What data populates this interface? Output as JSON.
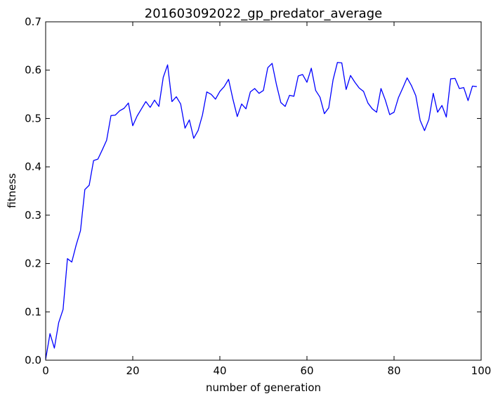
{
  "chart_data": {
    "type": "line",
    "title": "201603092022_gp_predator_average",
    "xlabel": "number of generation",
    "ylabel": "fitness",
    "xlim": [
      0,
      100
    ],
    "ylim": [
      0,
      0.7
    ],
    "xticks": [
      0,
      20,
      40,
      60,
      80,
      100
    ],
    "xtick_labels": [
      "0",
      "20",
      "40",
      "60",
      "80",
      "100"
    ],
    "yticks": [
      0,
      0.1,
      0.2,
      0.3,
      0.4,
      0.5,
      0.6,
      0.7
    ],
    "ytick_labels": [
      "0.0",
      "0.1",
      "0.2",
      "0.3",
      "0.4",
      "0.5",
      "0.6",
      "0.7"
    ],
    "grid": false,
    "line_color": "#0000ff",
    "series": [
      {
        "x": [
          0,
          1,
          2,
          3,
          4,
          5,
          6,
          7,
          8,
          9,
          10,
          11,
          12,
          13,
          14,
          15,
          16,
          17,
          18,
          19,
          20,
          21,
          22,
          23,
          24,
          25,
          26,
          27,
          28,
          29,
          30,
          31,
          32,
          33,
          34,
          35,
          36,
          37,
          38,
          39,
          40,
          41,
          42,
          43,
          44,
          45,
          46,
          47,
          48,
          49,
          50,
          51,
          52,
          53,
          54,
          55,
          56,
          57,
          58,
          59,
          60,
          61,
          62,
          63,
          64,
          65,
          66,
          67,
          68,
          69,
          70,
          71,
          72,
          73,
          74,
          75,
          76,
          77,
          78,
          79,
          80,
          81,
          82,
          83,
          84,
          85,
          86,
          87,
          88,
          89,
          90,
          91,
          92,
          93,
          94,
          95,
          96,
          97,
          98,
          99
        ],
        "values": [
          0.002,
          0.055,
          0.025,
          0.078,
          0.105,
          0.21,
          0.203,
          0.238,
          0.268,
          0.353,
          0.362,
          0.413,
          0.416,
          0.435,
          0.455,
          0.506,
          0.507,
          0.516,
          0.521,
          0.532,
          0.485,
          0.505,
          0.52,
          0.535,
          0.523,
          0.538,
          0.525,
          0.585,
          0.611,
          0.535,
          0.545,
          0.53,
          0.48,
          0.497,
          0.459,
          0.475,
          0.507,
          0.555,
          0.55,
          0.54,
          0.556,
          0.566,
          0.581,
          0.54,
          0.504,
          0.53,
          0.52,
          0.555,
          0.562,
          0.552,
          0.558,
          0.605,
          0.614,
          0.57,
          0.533,
          0.525,
          0.548,
          0.546,
          0.588,
          0.591,
          0.575,
          0.604,
          0.558,
          0.544,
          0.51,
          0.522,
          0.58,
          0.616,
          0.615,
          0.56,
          0.589,
          0.575,
          0.563,
          0.556,
          0.532,
          0.52,
          0.513,
          0.562,
          0.538,
          0.508,
          0.513,
          0.543,
          0.563,
          0.584,
          0.568,
          0.547,
          0.496,
          0.475,
          0.498,
          0.552,
          0.513,
          0.527,
          0.503,
          0.582,
          0.583,
          0.562,
          0.564,
          0.537,
          0.567,
          0.566
        ]
      }
    ]
  }
}
